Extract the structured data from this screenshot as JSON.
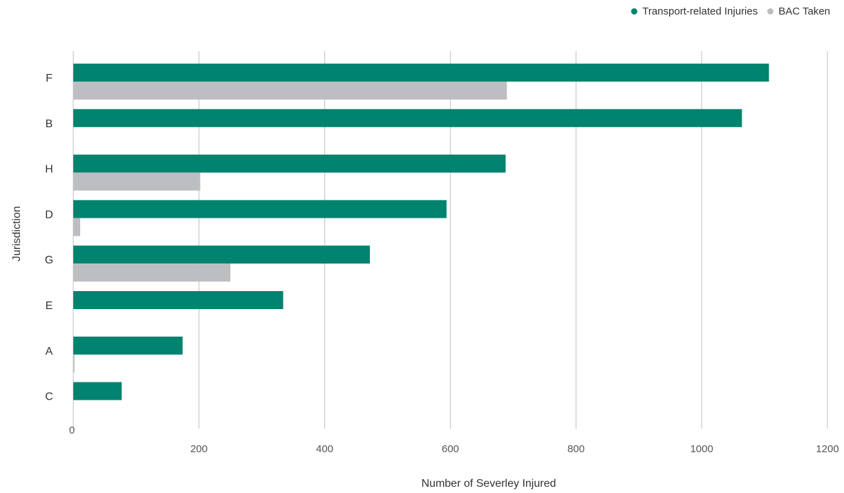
{
  "chart_data": {
    "type": "bar",
    "orientation": "horizontal",
    "categories": [
      "F",
      "B",
      "H",
      "D",
      "G",
      "E",
      "A",
      "C"
    ],
    "series": [
      {
        "name": "Transport-related Injuries",
        "color": "#00836f",
        "values": [
          1107,
          1064,
          688,
          594,
          472,
          334,
          174,
          77
        ]
      },
      {
        "name": "BAC Taken",
        "color": "#bdbec2",
        "values": [
          690,
          0,
          202,
          11,
          250,
          0,
          2,
          0
        ]
      }
    ],
    "xlabel": "Number of Severley Injured",
    "ylabel": "Jurisdiction",
    "xlim": [
      0,
      1200
    ],
    "xticks": [
      "0",
      "200",
      "400",
      "600",
      "800",
      "1000",
      "1200"
    ],
    "grid": "vertical",
    "legend_position": "top-right"
  }
}
